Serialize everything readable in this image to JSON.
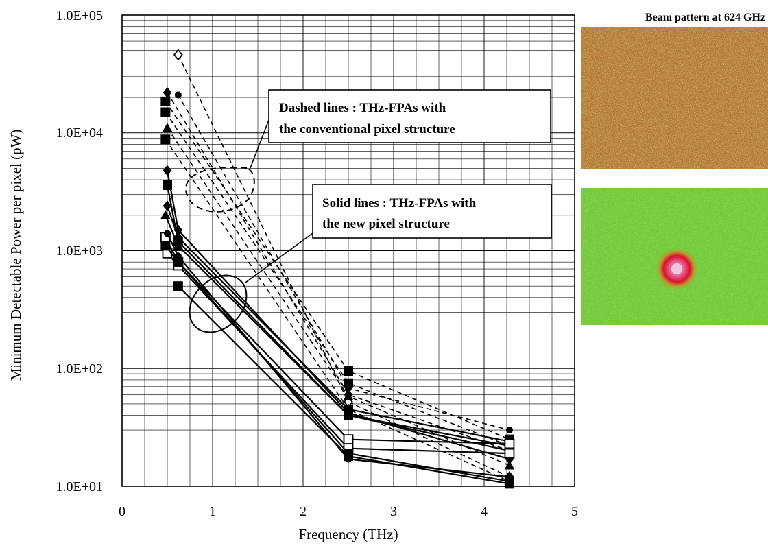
{
  "chart_data": {
    "type": "line",
    "xlabel": "Frequency (THz)",
    "ylabel": "Minimum Detectable Power per pixel (pW)",
    "xlim": [
      0,
      5
    ],
    "ylim": [
      10,
      100000
    ],
    "yscale": "log",
    "grid": true,
    "x_ticks": [
      "0",
      "1",
      "2",
      "3",
      "4",
      "5"
    ],
    "y_ticks": [
      "1.0E+01",
      "1.0E+02",
      "1.0E+03",
      "1.0E+04",
      "1.0E+05"
    ],
    "series": [
      {
        "style": "dashed",
        "marker": "diamond-open",
        "x": [
          0.62,
          2.5,
          4.28
        ],
        "y": [
          46000,
          52,
          12
        ]
      },
      {
        "style": "dashed",
        "marker": "circle",
        "x": [
          0.62,
          2.5,
          4.28
        ],
        "y": [
          21000,
          68,
          30
        ]
      },
      {
        "style": "dashed",
        "marker": "diamond",
        "x": [
          0.5,
          2.5,
          4.28
        ],
        "y": [
          22000,
          60,
          20
        ]
      },
      {
        "style": "dashed",
        "marker": "square",
        "x": [
          0.48,
          2.5,
          4.28
        ],
        "y": [
          18500,
          95,
          25
        ]
      },
      {
        "style": "dashed",
        "marker": "square",
        "x": [
          0.48,
          2.5,
          4.28
        ],
        "y": [
          15000,
          75,
          22
        ]
      },
      {
        "style": "dashed",
        "marker": "triangle",
        "x": [
          0.5,
          2.5,
          4.28
        ],
        "y": [
          11000,
          58,
          15
        ]
      },
      {
        "style": "dashed",
        "marker": "square",
        "x": [
          0.48,
          2.5,
          4.28
        ],
        "y": [
          8800,
          45,
          11
        ]
      },
      {
        "style": "solid",
        "marker": "diamond",
        "x": [
          0.5,
          0.62,
          2.5,
          4.28
        ],
        "y": [
          4800,
          1500,
          42,
          17
        ]
      },
      {
        "style": "solid",
        "marker": "square",
        "x": [
          0.5,
          0.62,
          2.5,
          4.28
        ],
        "y": [
          3600,
          1200,
          40,
          22
        ]
      },
      {
        "style": "solid",
        "marker": "diamond",
        "x": [
          0.5,
          0.62,
          2.5,
          4.28
        ],
        "y": [
          2400,
          1300,
          45,
          24
        ]
      },
      {
        "style": "solid",
        "marker": "triangle",
        "x": [
          0.48,
          0.62,
          2.5,
          4.28
        ],
        "y": [
          2000,
          1100,
          40,
          20
        ]
      },
      {
        "style": "solid",
        "marker": "square-open",
        "x": [
          0.48,
          0.62,
          2.5,
          4.28
        ],
        "y": [
          1300,
          800,
          25,
          23
        ]
      },
      {
        "style": "solid",
        "marker": "square-open",
        "x": [
          0.5,
          0.62,
          2.5,
          4.28
        ],
        "y": [
          950,
          750,
          21,
          19
        ]
      },
      {
        "style": "solid",
        "marker": "square",
        "x": [
          0.48,
          0.62,
          2.5,
          4.28
        ],
        "y": [
          1100,
          800,
          19,
          11
        ]
      },
      {
        "style": "solid",
        "marker": "square",
        "x": [
          0.62,
          2.5,
          4.28
        ],
        "y": [
          500,
          18,
          10.5
        ]
      },
      {
        "style": "solid",
        "marker": "circle",
        "x": [
          0.5,
          0.62,
          2.5,
          4.28
        ],
        "y": [
          1400,
          900,
          17,
          12
        ]
      }
    ],
    "annotations": [
      {
        "text_lines": [
          "Dashed lines : THz-FPAs with",
          "the conventional pixel structure"
        ]
      },
      {
        "text_lines": [
          "Solid lines : THz-FPAs with",
          "the new pixel structure"
        ]
      }
    ]
  },
  "beam_pattern": {
    "title": "Beam pattern at 624 GHz",
    "colors": {
      "top_panel": "#b3702f",
      "top_speckle": "#9aa33c",
      "bottom_panel": "#6fc83a",
      "spot_core": "#f0c6dc",
      "spot_ring": "#e0183a"
    }
  },
  "colors": {
    "line": "#000000",
    "grid": "#000000",
    "background": "#ffffff"
  }
}
